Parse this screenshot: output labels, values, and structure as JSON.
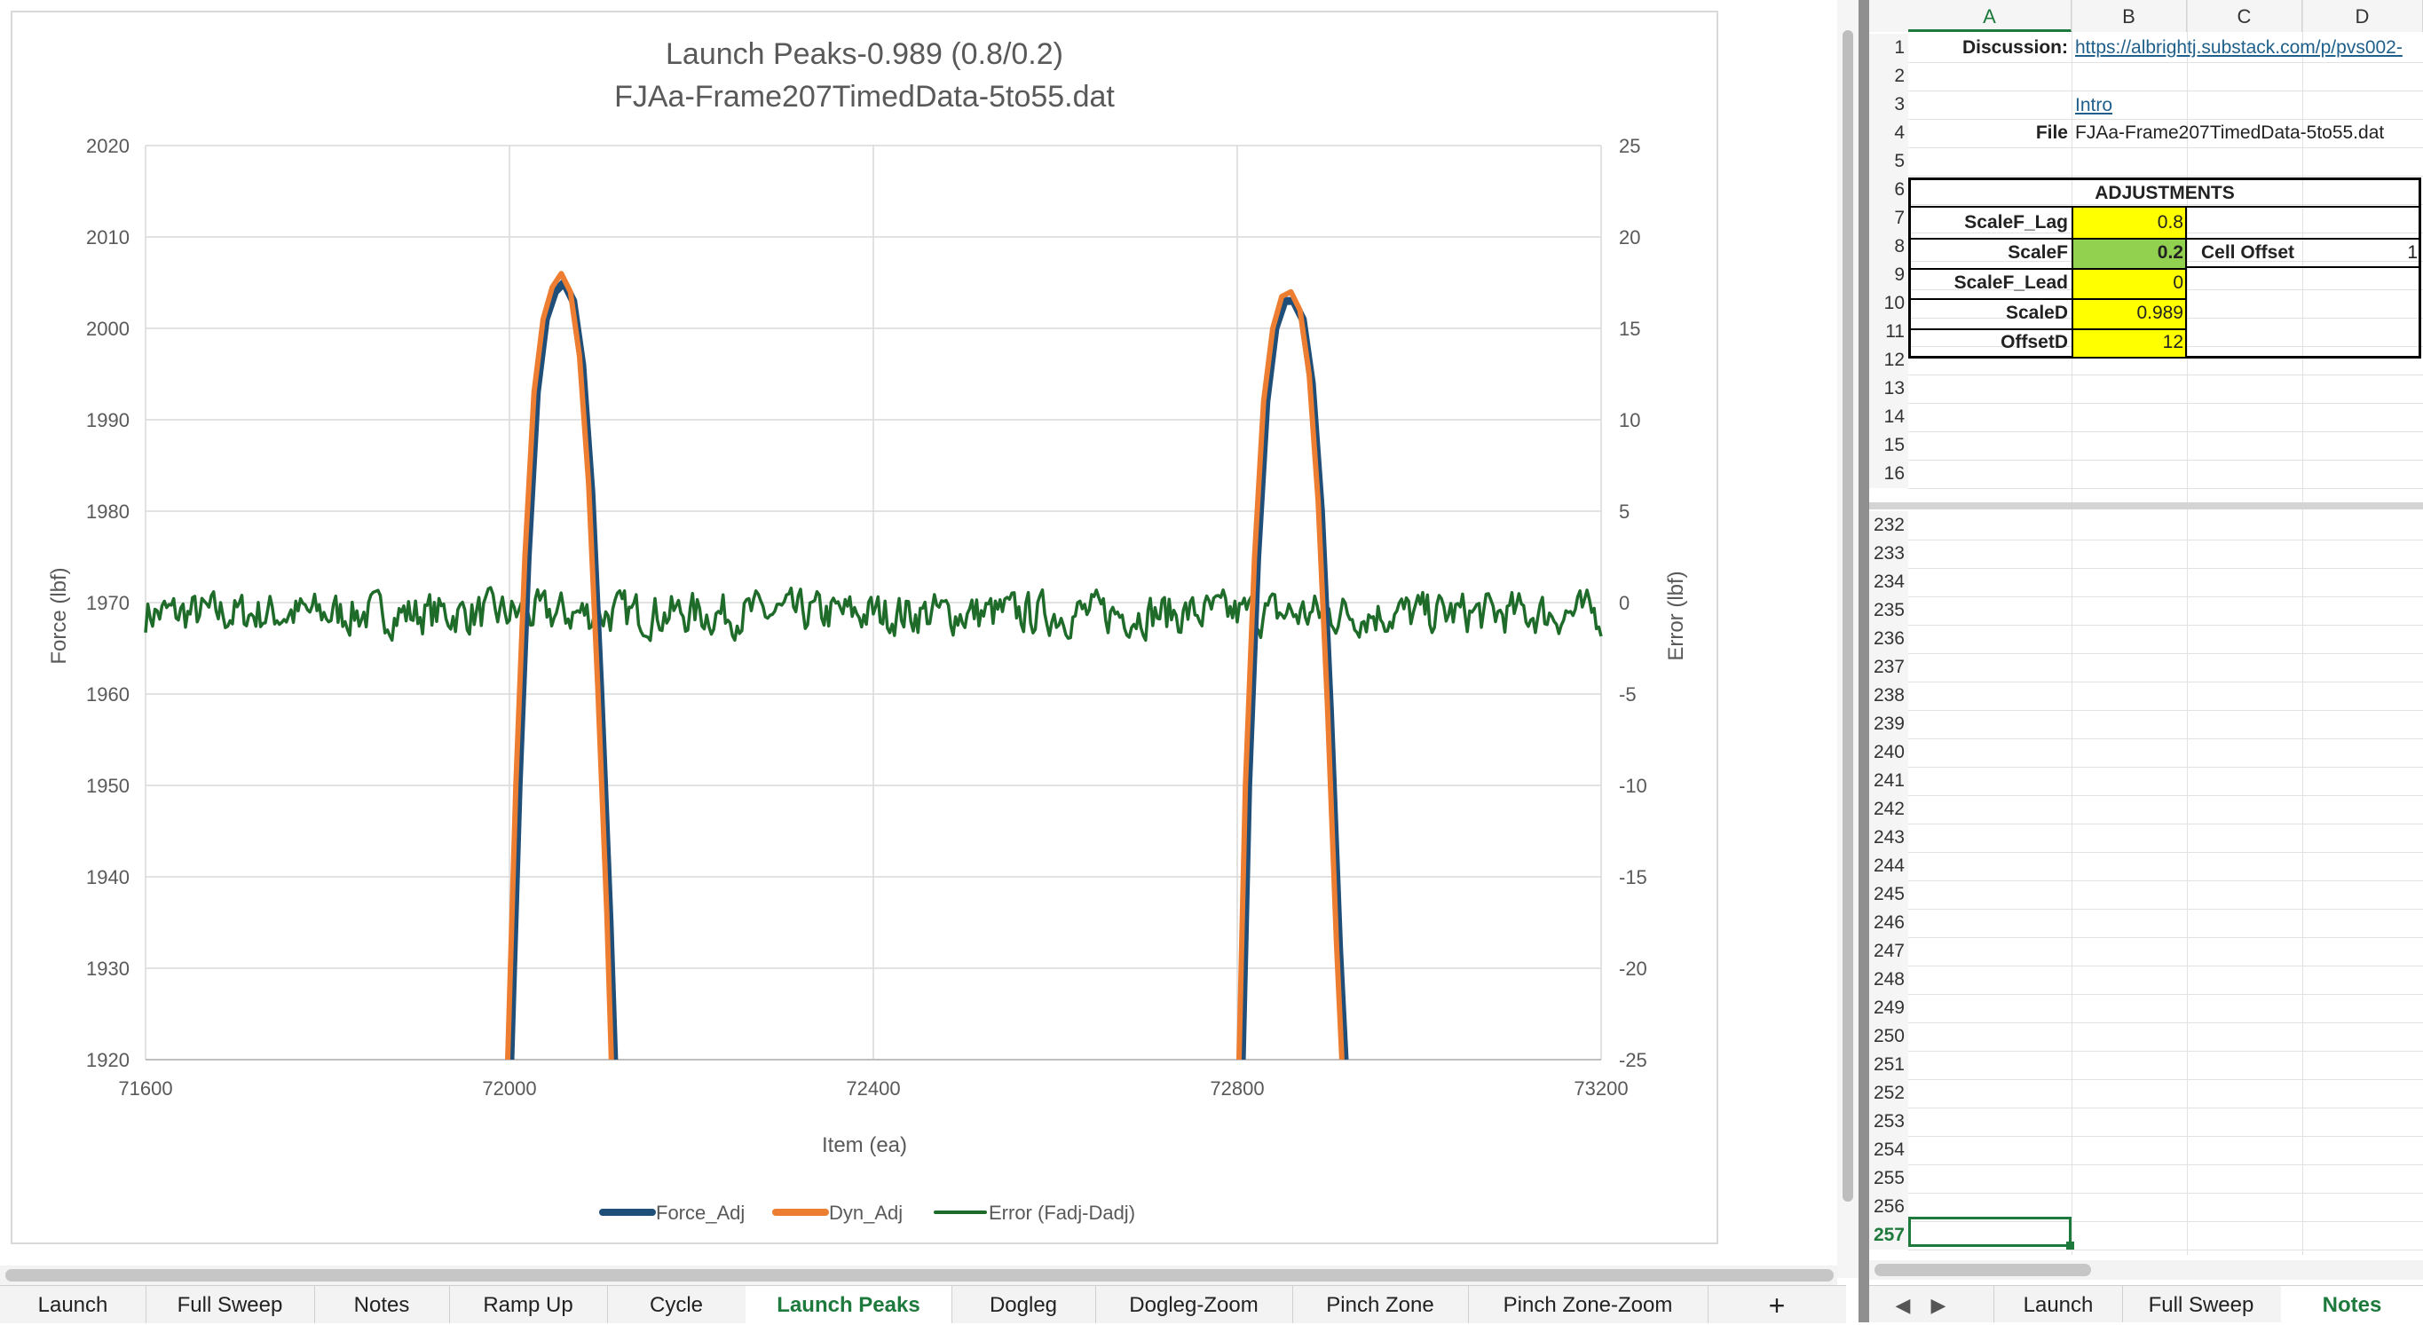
{
  "chart_data": {
    "type": "line",
    "title": "Launch Peaks-0.989 (0.8/0.2)",
    "subtitle": "FJAa-Frame207TimedData-5to55.dat",
    "xlabel": "Item (ea)",
    "ylabel": "Force (lbf)",
    "y2label": "Error (lbf)",
    "xlim": [
      71600,
      73200
    ],
    "ylim": [
      1920,
      2020
    ],
    "y2lim": [
      -25,
      25
    ],
    "x_ticks": [
      "71600",
      "72000",
      "72400",
      "72800",
      "73200"
    ],
    "y_ticks": [
      "1920",
      "1930",
      "1940",
      "1950",
      "1960",
      "1970",
      "1980",
      "1990",
      "2000",
      "2010",
      "2020"
    ],
    "y2_ticks": [
      "-25",
      "-20",
      "-15",
      "-10",
      "-5",
      "0",
      "5",
      "10",
      "15",
      "20",
      "25"
    ],
    "grid": true,
    "legend_position": "bottom",
    "series": [
      {
        "name": "Force_Adj",
        "axis": "left",
        "color": "#1f4e79",
        "points": [
          [
            72001,
            1920
          ],
          [
            72010,
            1950
          ],
          [
            72020,
            1975
          ],
          [
            72030,
            1993
          ],
          [
            72040,
            2001
          ],
          [
            72050,
            2004
          ],
          [
            72060,
            2005
          ],
          [
            72070,
            2003
          ],
          [
            72080,
            1996
          ],
          [
            72090,
            1982
          ],
          [
            72100,
            1960
          ],
          [
            72110,
            1935
          ],
          [
            72115,
            1920
          ],
          [
            72805,
            1920
          ],
          [
            72812,
            1950
          ],
          [
            72822,
            1975
          ],
          [
            72832,
            1992
          ],
          [
            72842,
            2000
          ],
          [
            72852,
            2003
          ],
          [
            72862,
            2003
          ],
          [
            72872,
            2001
          ],
          [
            72882,
            1994
          ],
          [
            72892,
            1980
          ],
          [
            72902,
            1958
          ],
          [
            72912,
            1932
          ],
          [
            72918,
            1920
          ]
        ]
      },
      {
        "name": "Dyn_Adj",
        "axis": "left",
        "color": "#ed7d31",
        "points": [
          [
            71998,
            1920
          ],
          [
            72007,
            1950
          ],
          [
            72017,
            1975
          ],
          [
            72027,
            1993
          ],
          [
            72037,
            2001
          ],
          [
            72047,
            2004.5
          ],
          [
            72057,
            2006
          ],
          [
            72067,
            2004
          ],
          [
            72077,
            1997
          ],
          [
            72087,
            1983
          ],
          [
            72097,
            1961
          ],
          [
            72107,
            1936
          ],
          [
            72112,
            1920
          ],
          [
            72802,
            1920
          ],
          [
            72809,
            1950
          ],
          [
            72819,
            1975
          ],
          [
            72829,
            1992
          ],
          [
            72839,
            2000
          ],
          [
            72849,
            2003.5
          ],
          [
            72859,
            2004
          ],
          [
            72869,
            2002
          ],
          [
            72879,
            1995
          ],
          [
            72889,
            1981
          ],
          [
            72899,
            1959
          ],
          [
            72909,
            1933
          ],
          [
            72915,
            1920
          ]
        ]
      },
      {
        "name": "Error (Fadj-Dadj)",
        "axis": "right",
        "color": "#1e6b2a",
        "x_range": [
          71600,
          73200
        ],
        "mean": -0.6,
        "amplitude": 1.6
      }
    ]
  },
  "tabs_left": {
    "active": "Launch Peaks",
    "items": [
      "Launch",
      "Full Sweep",
      "Notes",
      "Ramp Up",
      "Cycle",
      "Launch Peaks",
      "Dogleg",
      "Dogleg-Zoom",
      "Pinch Zone",
      "Pinch Zone-Zoom"
    ],
    "add_label": "+"
  },
  "sheet": {
    "columns": [
      "A",
      "B",
      "C",
      "D"
    ],
    "selected_column": "A",
    "rows_top": [
      "1",
      "2",
      "3",
      "4",
      "5",
      "6",
      "7",
      "8",
      "9",
      "10",
      "11",
      "12",
      "13",
      "14",
      "15",
      "16"
    ],
    "rows_bottom": [
      "232",
      "233",
      "234",
      "235",
      "236",
      "237",
      "238",
      "239",
      "240",
      "241",
      "242",
      "243",
      "244",
      "245",
      "246",
      "247",
      "248",
      "249",
      "250",
      "251",
      "252",
      "253",
      "254",
      "255",
      "256",
      "257"
    ],
    "selected_row": "257",
    "cells": {
      "a1": "Discussion:",
      "b1": "https://albrightj.substack.com/p/pvs002-",
      "b3": "Intro",
      "a4": "File",
      "b4": "FJAa-Frame207TimedData-5to55.dat",
      "a6": "ADJUSTMENTS",
      "a7": "ScaleF_Lag",
      "b7": "0.8",
      "a8": "ScaleF",
      "b8": "0.2",
      "c8": "Cell Offset",
      "d8": "1",
      "a9": "ScaleF_Lead",
      "b9": "0",
      "a10": "ScaleD",
      "b10": "0.989",
      "a11": "OffsetD",
      "b11": "12"
    },
    "colors": {
      "yellow": "#ffff00",
      "green": "#92d050",
      "link": "#1f5f8b",
      "accent": "#1e7a3c"
    }
  },
  "tabs_right": {
    "active": "Notes",
    "items": [
      "Launch",
      "Full Sweep",
      "Notes"
    ],
    "prev_icon": "triangle-left-icon",
    "next_icon": "triangle-right-icon"
  }
}
